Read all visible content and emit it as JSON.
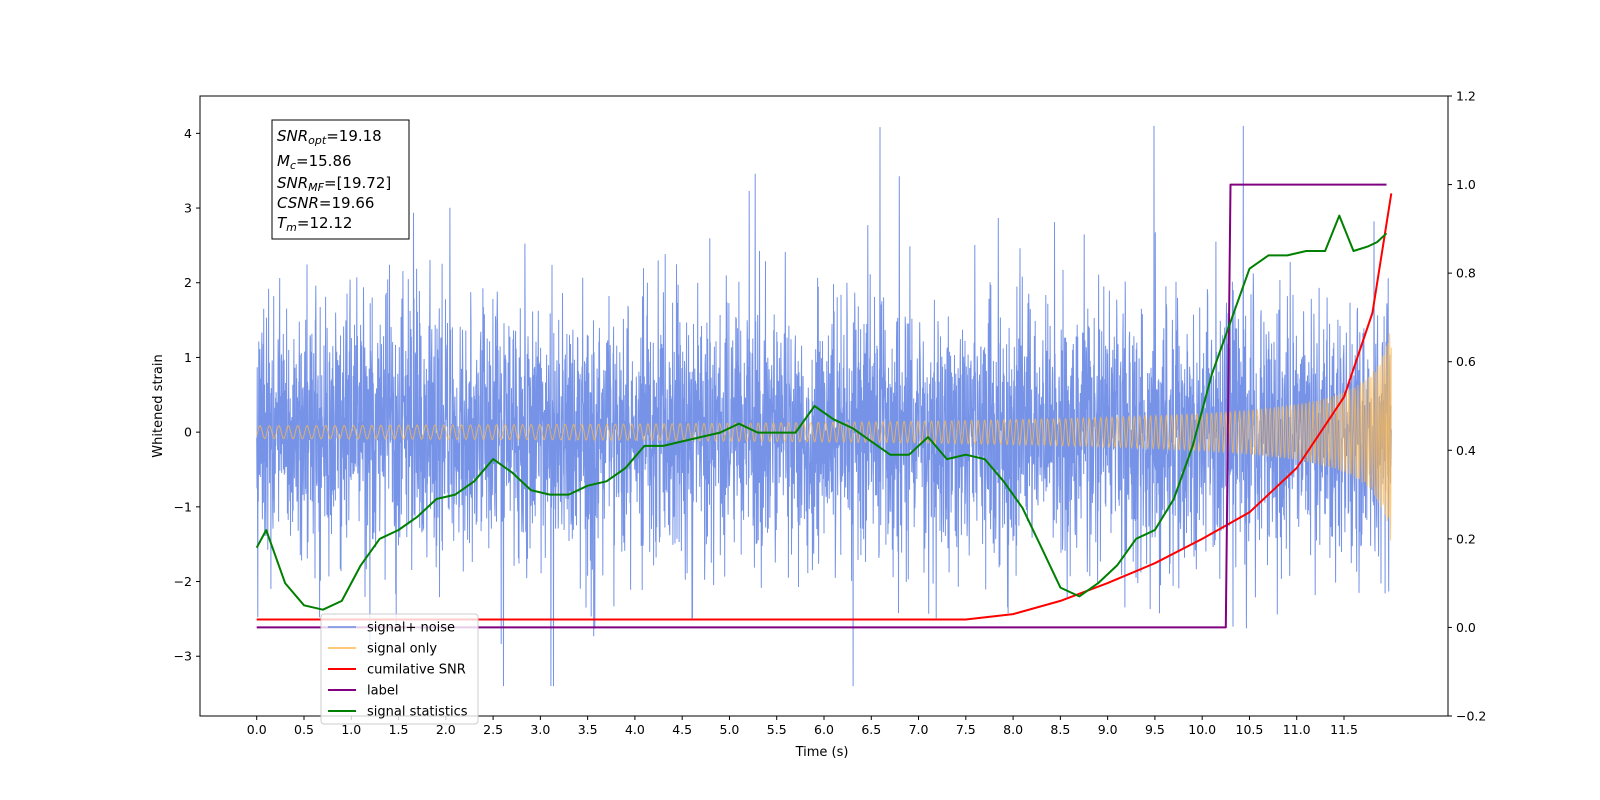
{
  "chart_data": {
    "type": "line",
    "xlabel": "Time (s)",
    "ylabel": "Whitened strain",
    "xlim": [
      -0.6,
      12.6
    ],
    "ylim": [
      -3.8,
      4.5
    ],
    "ylim_right": [
      -0.2,
      1.2
    ],
    "x_ticks": [
      0.0,
      0.5,
      1.0,
      1.5,
      2.0,
      2.5,
      3.0,
      3.5,
      4.0,
      4.5,
      5.0,
      5.5,
      6.0,
      6.5,
      7.0,
      7.5,
      8.0,
      8.5,
      9.0,
      9.5,
      10.0,
      10.5,
      11.0,
      11.5
    ],
    "x_tick_labels": [
      "0.0",
      "0.5",
      "1.0",
      "1.5",
      "2.0",
      "2.5",
      "3.0",
      "3.5",
      "4.0",
      "4.5",
      "5.0",
      "5.5",
      "6.0",
      "6.5",
      "7.0",
      "7.5",
      "8.0",
      "8.5",
      "9.0",
      "9.5",
      "10.0",
      "10.5",
      "11.0",
      "11.5"
    ],
    "y_ticks": [
      -3,
      -2,
      -1,
      0,
      1,
      2,
      3,
      4
    ],
    "y_tick_labels": [
      "−3",
      "−2",
      "−1",
      "0",
      "1",
      "2",
      "3",
      "4"
    ],
    "y_ticks_right": [
      -0.2,
      0.0,
      0.2,
      0.4,
      0.6,
      0.8,
      1.0,
      1.2
    ],
    "y_tick_labels_right": [
      "−0.2",
      "0.0",
      "0.2",
      "0.4",
      "0.6",
      "0.8",
      "1.0",
      "1.2"
    ],
    "grid": false,
    "legend_position": "lower-left",
    "annotation": {
      "lines": [
        {
          "main": "SNR",
          "sub": "opt",
          "rest": "=19.18"
        },
        {
          "main": "M",
          "sub": "c",
          "rest": "=15.86"
        },
        {
          "main": "SNR",
          "sub": "MF",
          "rest": "=[19.72]"
        },
        {
          "main": "CSNR",
          "sub": "",
          "rest": "=19.66"
        },
        {
          "main": "T",
          "sub": "m",
          "rest": "=12.12"
        }
      ]
    },
    "series": [
      {
        "name": "signal+ noise",
        "axis": "left",
        "color": "#6f8de6",
        "style": "noise",
        "t_range": [
          0.0,
          12.0
        ],
        "amplitude_typical": 1.6,
        "peak_max": 4.1,
        "peak_min": -3.4
      },
      {
        "name": "signal only",
        "axis": "left",
        "color": "#ffb94d",
        "style": "chirp",
        "t_range": [
          0.0,
          12.0
        ],
        "amplitude_end": 1.5
      },
      {
        "name": "cumilative SNR",
        "axis": "right",
        "color": "#ff0000",
        "x": [
          0.0,
          7.5,
          8.0,
          8.5,
          9.0,
          9.5,
          10.0,
          10.5,
          11.0,
          11.5,
          11.8,
          12.0
        ],
        "y": [
          0.018,
          0.018,
          0.03,
          0.06,
          0.1,
          0.145,
          0.2,
          0.26,
          0.36,
          0.52,
          0.71,
          0.98
        ]
      },
      {
        "name": "label",
        "axis": "right",
        "color": "#800080",
        "x": [
          0.0,
          10.25,
          10.3,
          11.95
        ],
        "y": [
          0.0,
          0.0,
          1.0,
          1.0
        ]
      },
      {
        "name": "signal statistics",
        "axis": "right",
        "color": "#008000",
        "x": [
          0.0,
          0.1,
          0.3,
          0.5,
          0.7,
          0.9,
          1.1,
          1.3,
          1.5,
          1.7,
          1.9,
          2.1,
          2.3,
          2.5,
          2.7,
          2.9,
          3.1,
          3.3,
          3.5,
          3.7,
          3.9,
          4.1,
          4.3,
          4.5,
          4.7,
          4.9,
          5.1,
          5.3,
          5.5,
          5.7,
          5.9,
          6.1,
          6.3,
          6.5,
          6.7,
          6.9,
          7.1,
          7.3,
          7.5,
          7.7,
          7.9,
          8.1,
          8.3,
          8.5,
          8.7,
          8.9,
          9.1,
          9.3,
          9.5,
          9.7,
          9.9,
          10.1,
          10.3,
          10.5,
          10.7,
          10.9,
          11.1,
          11.3,
          11.45,
          11.6,
          11.75,
          11.85,
          11.95
        ],
        "y": [
          0.18,
          0.22,
          0.1,
          0.05,
          0.04,
          0.06,
          0.14,
          0.2,
          0.22,
          0.25,
          0.29,
          0.3,
          0.33,
          0.38,
          0.35,
          0.31,
          0.3,
          0.3,
          0.32,
          0.33,
          0.36,
          0.41,
          0.41,
          0.42,
          0.43,
          0.44,
          0.46,
          0.44,
          0.44,
          0.44,
          0.5,
          0.47,
          0.45,
          0.42,
          0.39,
          0.39,
          0.43,
          0.38,
          0.39,
          0.38,
          0.33,
          0.27,
          0.18,
          0.09,
          0.07,
          0.1,
          0.14,
          0.2,
          0.22,
          0.29,
          0.41,
          0.57,
          0.69,
          0.81,
          0.84,
          0.84,
          0.85,
          0.85,
          0.93,
          0.85,
          0.86,
          0.87,
          0.89
        ]
      }
    ]
  }
}
